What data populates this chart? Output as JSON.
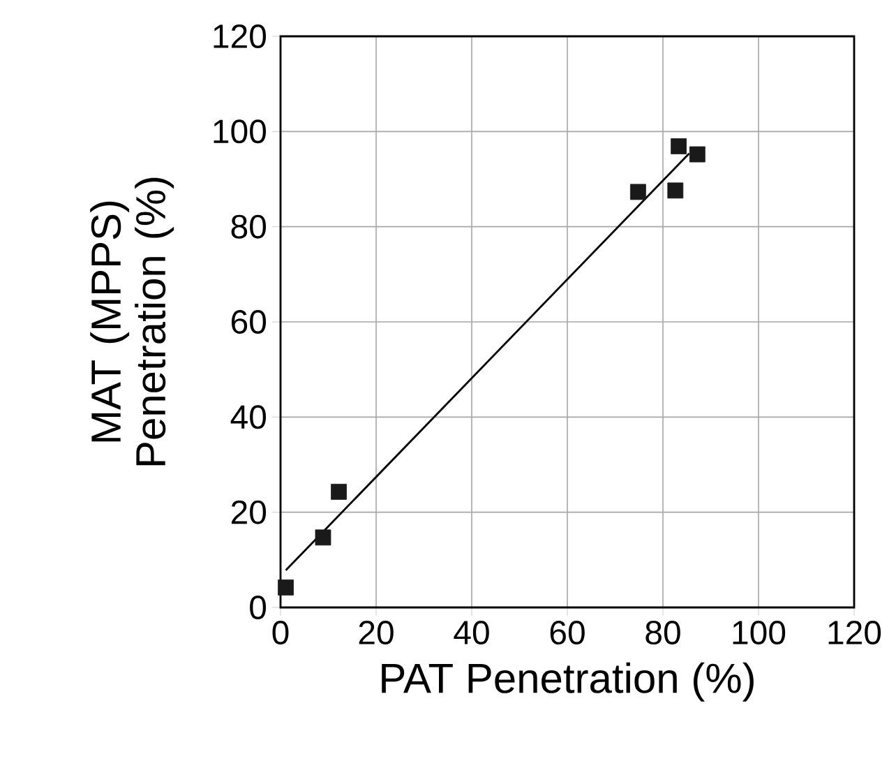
{
  "chart_data": {
    "type": "scatter",
    "xlabel": "PAT Penetration (%)",
    "ylabel": "MAT (MPPS) Penetration (%)",
    "xlim": [
      0,
      120
    ],
    "ylim": [
      0,
      120
    ],
    "xticks": [
      0,
      20,
      40,
      60,
      80,
      100,
      120
    ],
    "yticks": [
      0,
      20,
      40,
      60,
      80,
      100,
      120
    ],
    "grid": true,
    "series": [
      {
        "color": "#1a1a1a",
        "marker": "square",
        "x": [
          1.1,
          8.9,
          12.2,
          74.8,
          82.6,
          83.3,
          87.2
        ],
        "values": [
          4.2,
          14.7,
          24.3,
          87.3,
          87.6,
          96.9,
          95.2
        ]
      },
      {
        "type": "line",
        "color": "#000000",
        "marker": "none",
        "line_style": "solid",
        "x": [
          1.1,
          85.5
        ],
        "values": [
          7.8,
          95.4
        ]
      }
    ]
  }
}
